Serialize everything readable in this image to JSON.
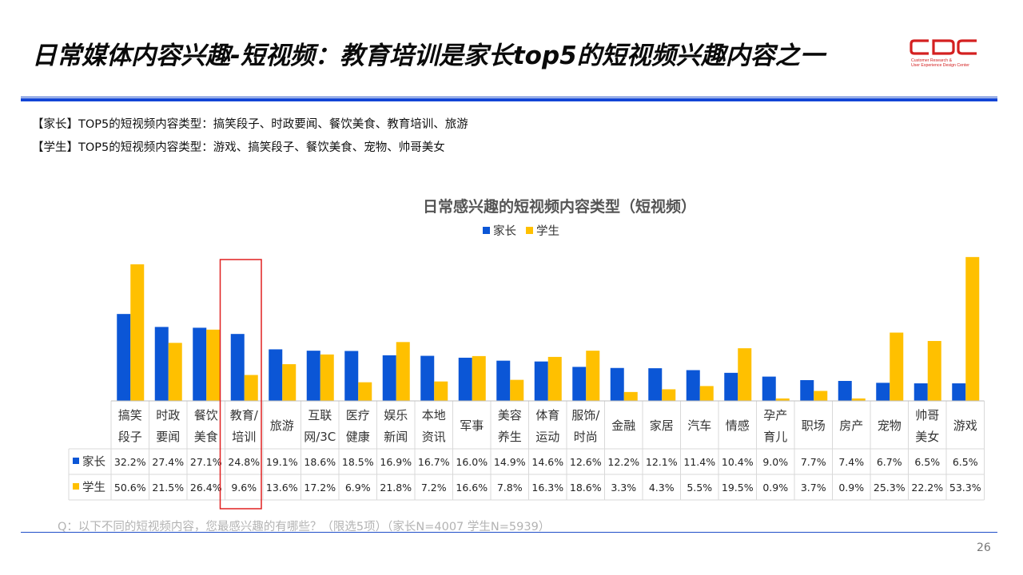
{
  "slide": {
    "title": "日常媒体内容兴趣-短视频：教育培训是家长top5的短视频兴趣内容之一",
    "logo": {
      "mark": "CDC",
      "line1": "Customer Research &",
      "line2": "User Experience Design Center"
    },
    "summary": [
      "【家长】TOP5的短视频内容类型：搞笑段子、时政要闻、餐饮美食、教育培训、旅游",
      "【学生】TOP5的短视频内容类型：游戏、搞笑段子、餐饮美食、宠物、帅哥美女"
    ],
    "footnote": "Q：以下不同的短视频内容，您最感兴趣的有哪些？（限选5项）（家长N=4007    学生N=5939）",
    "page_number": "26"
  },
  "colors": {
    "parent": "#0b56d6",
    "student": "#ffc000",
    "highlight": "#e02020",
    "brand_red": "#d42020",
    "rule_blue": "#1245d6"
  },
  "chart_data": {
    "type": "bar",
    "title": "日常感兴趣的短视频内容类型（短视频）",
    "categories": [
      [
        "搞笑",
        "段子"
      ],
      [
        "时政",
        "要闻"
      ],
      [
        "餐饮",
        "美食"
      ],
      [
        "教育/",
        "培训"
      ],
      [
        "旅游"
      ],
      [
        "互联",
        "网/3C"
      ],
      [
        "医疗",
        "健康"
      ],
      [
        "娱乐",
        "新闻"
      ],
      [
        "本地",
        "资讯"
      ],
      [
        "军事"
      ],
      [
        "美容",
        "养生"
      ],
      [
        "体育",
        "运动"
      ],
      [
        "服饰/",
        "时尚"
      ],
      [
        "金融"
      ],
      [
        "家居"
      ],
      [
        "汽车"
      ],
      [
        "情感"
      ],
      [
        "孕产",
        "育儿"
      ],
      [
        "职场"
      ],
      [
        "房产"
      ],
      [
        "宠物"
      ],
      [
        "帅哥",
        "美女"
      ],
      [
        "游戏"
      ]
    ],
    "series": [
      {
        "name": "家长",
        "values": [
          32.2,
          27.4,
          27.1,
          24.8,
          19.1,
          18.6,
          18.5,
          16.9,
          16.7,
          16.0,
          14.9,
          14.6,
          12.6,
          12.2,
          12.1,
          11.4,
          10.4,
          9.0,
          7.7,
          7.4,
          6.7,
          6.5,
          6.5
        ],
        "labels": [
          "32.2%",
          "27.4%",
          "27.1%",
          "24.8%",
          "19.1%",
          "18.6%",
          "18.5%",
          "16.9%",
          "16.7%",
          "16.0%",
          "14.9%",
          "14.6%",
          "12.6%",
          "12.2%",
          "12.1%",
          "11.4%",
          "10.4%",
          "9.0%",
          "7.7%",
          "7.4%",
          "6.7%",
          "6.5%",
          "6.5%"
        ]
      },
      {
        "name": "学生",
        "values": [
          50.6,
          21.5,
          26.4,
          9.6,
          13.6,
          17.2,
          6.9,
          21.8,
          7.2,
          16.6,
          7.8,
          16.3,
          18.6,
          3.3,
          4.3,
          5.5,
          19.5,
          0.9,
          3.7,
          0.9,
          25.3,
          22.2,
          53.3
        ],
        "labels": [
          "50.6%",
          "21.5%",
          "26.4%",
          "9.6%",
          "13.6%",
          "17.2%",
          "6.9%",
          "21.8%",
          "7.2%",
          "16.6%",
          "7.8%",
          "16.3%",
          "18.6%",
          "3.3%",
          "4.3%",
          "5.5%",
          "19.5%",
          "0.9%",
          "3.7%",
          "0.9%",
          "25.3%",
          "22.2%",
          "53.3%"
        ]
      }
    ],
    "highlight_category": "教育/培训",
    "ylim": [
      0,
      60
    ],
    "legend": "top-center",
    "grid": false,
    "data_table": true
  }
}
